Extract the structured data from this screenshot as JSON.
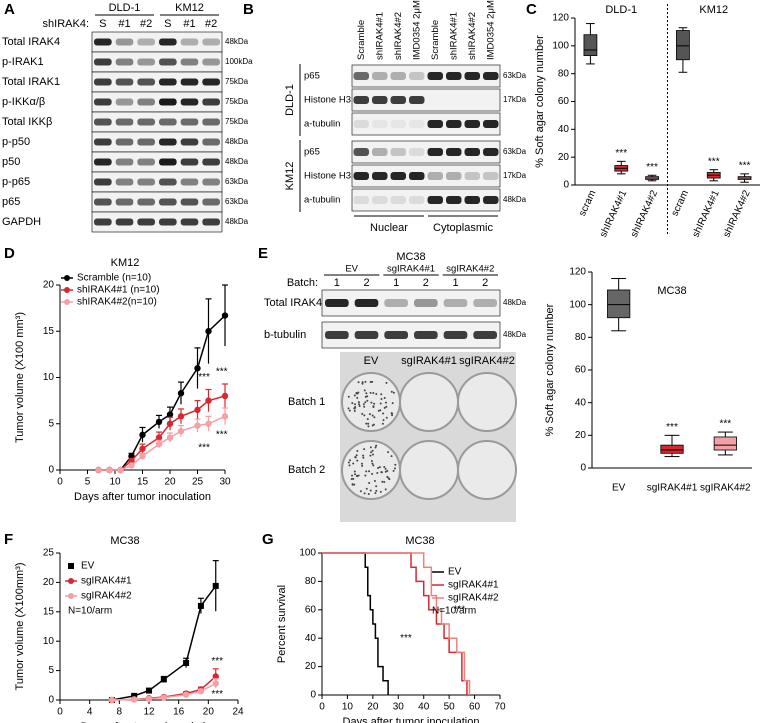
{
  "panel_labels": [
    "A",
    "B",
    "C",
    "D",
    "E",
    "F",
    "G"
  ],
  "blot_a": {
    "prefix": "shIRAK4:",
    "groups": [
      "DLD-1",
      "KM12"
    ],
    "lanes": [
      "S",
      "#1",
      "#2",
      "S",
      "#1",
      "#2"
    ],
    "rows": [
      {
        "label": "Total IRAK4",
        "kda": "48kDa"
      },
      {
        "label": "p-IRAK1",
        "kda": "100kDa"
      },
      {
        "label": "Total IRAK1",
        "kda": "75kDa"
      },
      {
        "label": "p-IKKα/β",
        "kda": "75kDa"
      },
      {
        "label": "Total IKKβ",
        "kda": "75kDa"
      },
      {
        "label": "p-p50",
        "kda": "48kDa"
      },
      {
        "label": "p50",
        "kda": "48kDa"
      },
      {
        "label": "p-p65",
        "kda": "63kDa"
      },
      {
        "label": "p65",
        "kda": "63kDa"
      },
      {
        "label": "GAPDH",
        "kda": "48kDa"
      }
    ]
  },
  "blot_b": {
    "lanes": [
      "Scramble",
      "shIRAK4#1",
      "shIRAK4#2",
      "IMD0354 2μM",
      "Scramble",
      "shIRAK4#1",
      "shIRAK4#2",
      "IMD0354 2μM"
    ],
    "groups": [
      {
        "name": "DLD-1",
        "rows": [
          {
            "label": "p65",
            "kda": "63kDa"
          },
          {
            "label": "Histone H3",
            "kda": "17kDa"
          },
          {
            "label": "a-tubulin"
          }
        ]
      },
      {
        "name": "KM12",
        "rows": [
          {
            "label": "p65",
            "kda": "63kDa"
          },
          {
            "label": "Histone H3",
            "kda": "17kDa"
          },
          {
            "label": "a-tubulin",
            "kda": "48kDa"
          }
        ]
      }
    ],
    "fractions": [
      "Nuclear",
      "Cytoplasmic"
    ]
  },
  "blot_e": {
    "title": "MC38",
    "groups": [
      "EV",
      "sgIRAK4#1",
      "sgIRAK4#2"
    ],
    "batch_prefix": "Batch:",
    "batches": [
      "1",
      "2",
      "1",
      "2",
      "1",
      "2"
    ],
    "rows": [
      {
        "label": "Total IRAK4",
        "kda": "48kDa"
      },
      {
        "label": "b-tubulin",
        "kda": "48kDa"
      }
    ],
    "plate_columns": [
      "EV",
      "sgIRAK4#1",
      "sgIRAK4#2"
    ],
    "plate_rows": [
      "Batch 1",
      "Batch 2"
    ]
  },
  "chart_data": [
    {
      "type": "box",
      "y_label": "% Soft agar colony number",
      "ylim": [
        0,
        120
      ],
      "yticks": [
        0,
        20,
        40,
        60,
        80,
        100,
        120
      ],
      "colors": [
        "#555555",
        "#d7282f",
        "#f28f9a"
      ],
      "groups": [
        {
          "name": "DLD-1",
          "categories": [
            "scram",
            "shIRAK4#1",
            "shIRAK4#2"
          ],
          "boxes": [
            [
              87,
              93,
              97,
              108,
              116
            ],
            [
              8,
              10,
              12,
              14,
              17
            ],
            [
              3,
              4,
              5,
              6,
              7
            ]
          ],
          "annotations": [
            "***",
            "***"
          ]
        },
        {
          "name": "KM12",
          "categories": [
            "scram",
            "shIRAK4#1",
            "shIRAK4#2"
          ],
          "boxes": [
            [
              81,
              90,
              100,
              111,
              113
            ],
            [
              3,
              5,
              7,
              9,
              11
            ],
            [
              2,
              4,
              5,
              6,
              8
            ]
          ],
          "annotations": [
            "***",
            "***"
          ]
        }
      ]
    },
    {
      "type": "line",
      "title": "KM12",
      "x_label": "Days after tumor inoculation",
      "y_label": "Tumor volume (X100 mm³)",
      "xlim": [
        0,
        30
      ],
      "xticks": [
        0,
        5,
        10,
        15,
        20,
        25,
        30
      ],
      "ylim": [
        0,
        20
      ],
      "yticks": [
        0,
        5,
        10,
        15,
        20
      ],
      "x": [
        7,
        9,
        11,
        13,
        15,
        18,
        20,
        22,
        25,
        27,
        30
      ],
      "series": [
        {
          "name": "Scramble (n=10)",
          "color": "#000000",
          "marker": "circle",
          "values": [
            0,
            0,
            0,
            1.5,
            3.8,
            5.2,
            6,
            8.3,
            11,
            15,
            16.7
          ],
          "errors": [
            0,
            0,
            0,
            0.3,
            0.8,
            0.7,
            0.8,
            1.2,
            2.2,
            3.5,
            3.3
          ]
        },
        {
          "name": "shIRAK4#1 (n=10)",
          "color": "#d7282f",
          "marker": "circle",
          "values": [
            0,
            0,
            0,
            1,
            2.3,
            3.5,
            5,
            5.8,
            6.5,
            7.5,
            8
          ],
          "errors": [
            0,
            0,
            0,
            0.2,
            0.5,
            0.6,
            0.7,
            0.8,
            1,
            1.2,
            1.3
          ]
        },
        {
          "name": "shIRAK4#2(n=10)",
          "color": "#f4a0a6",
          "marker": "circle",
          "values": [
            0,
            0,
            0,
            0.5,
            1.5,
            2.8,
            3.5,
            4.2,
            4.8,
            5,
            5.8
          ],
          "errors": [
            0,
            0,
            0,
            0.1,
            0.3,
            0.4,
            0.5,
            0.6,
            0.7,
            0.8,
            0.9
          ]
        }
      ],
      "annotations": [
        "***",
        "***",
        "***",
        "***"
      ]
    },
    {
      "type": "box",
      "title": "MC38",
      "y_label": "% Soft agar colony number",
      "ylim": [
        0,
        120
      ],
      "yticks": [
        0,
        20,
        40,
        60,
        80,
        100,
        120
      ],
      "colors": [
        "#666666",
        "#d7282f",
        "#f4a0a6"
      ],
      "categories": [
        "EV",
        "sgIRAK4#1",
        "sgIRAK4#2"
      ],
      "boxes": [
        [
          84,
          92,
          100,
          109,
          116
        ],
        [
          7,
          9,
          11,
          14,
          20
        ],
        [
          8,
          11,
          14,
          19,
          22
        ]
      ],
      "annotations": [
        "***",
        "***"
      ]
    },
    {
      "type": "line",
      "title": "MC38",
      "x_label": "Days after tumor inoculation",
      "y_label": "Tumor volume (X100mm³)",
      "xlim": [
        0,
        24
      ],
      "xticks": [
        0,
        4,
        8,
        12,
        16,
        20,
        24
      ],
      "ylim": [
        0,
        25
      ],
      "yticks": [
        0,
        5,
        10,
        15,
        20,
        25
      ],
      "x": [
        7,
        10,
        12,
        14,
        17,
        19,
        21
      ],
      "series": [
        {
          "name": "EV",
          "color": "#000000",
          "marker": "square",
          "values": [
            0,
            0.7,
            1.6,
            3.5,
            6.3,
            16,
            19.4
          ],
          "errors": [
            0,
            0.2,
            0.3,
            0.5,
            0.8,
            1.3,
            4.3
          ]
        },
        {
          "name": "sgIRAK4#1",
          "color": "#d7282f",
          "marker": "circle",
          "values": [
            0,
            0.1,
            0.3,
            0.5,
            1.1,
            1.8,
            4
          ],
          "errors": [
            0,
            0,
            0.1,
            0.1,
            0.3,
            0.4,
            1.3
          ]
        },
        {
          "name": "sgIRAK4#2",
          "color": "#f4a0a6",
          "marker": "circle",
          "values": [
            0,
            0.1,
            0.2,
            0.4,
            0.9,
            1.5,
            2.8
          ],
          "errors": [
            0,
            0,
            0.1,
            0.1,
            0.2,
            0.3,
            0.8
          ]
        }
      ],
      "note": "N=10/arm",
      "annotations": [
        "***",
        "***"
      ]
    },
    {
      "type": "survival",
      "title": "MC38",
      "x_label": "Days after tumor inoculation",
      "y_label": "Percent survival",
      "xlim": [
        0,
        70
      ],
      "xticks": [
        0,
        10,
        20,
        30,
        40,
        50,
        60,
        70
      ],
      "ylim": [
        0,
        100
      ],
      "yticks": [
        0,
        20,
        40,
        60,
        80,
        100
      ],
      "series": [
        {
          "name": "EV",
          "color": "#000000",
          "x": [
            0,
            17,
            18,
            19,
            20,
            21,
            22,
            24,
            26
          ],
          "values": [
            100,
            90,
            70,
            60,
            50,
            40,
            20,
            10,
            0
          ]
        },
        {
          "name": "sgIRAK4#1",
          "color": "#d7282f",
          "x": [
            0,
            35,
            37,
            40,
            42,
            45,
            48,
            50,
            55,
            57
          ],
          "values": [
            100,
            90,
            80,
            70,
            60,
            50,
            40,
            30,
            10,
            0
          ]
        },
        {
          "name": "sgIRAK4#2",
          "color": "#f08080",
          "x": [
            0,
            40,
            43,
            45,
            47,
            50,
            53,
            56,
            58
          ],
          "values": [
            100,
            90,
            70,
            60,
            50,
            40,
            30,
            10,
            0
          ]
        }
      ],
      "note": "N=10/arm",
      "annotations": [
        "***",
        "***"
      ]
    }
  ]
}
